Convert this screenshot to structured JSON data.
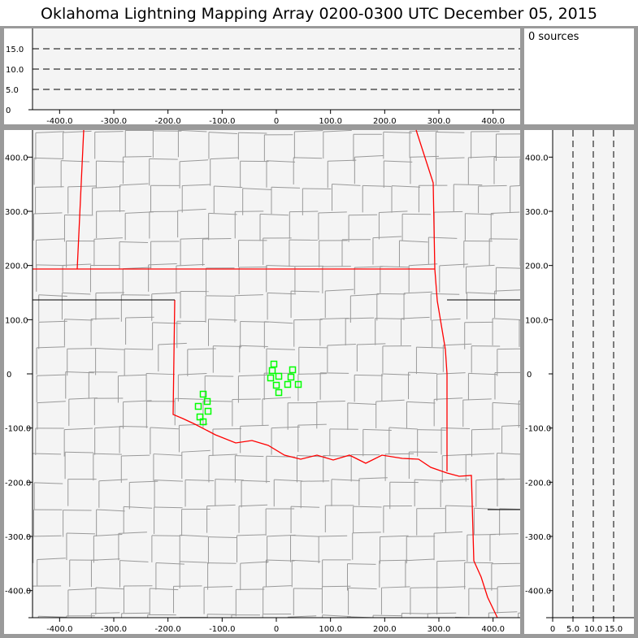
{
  "title": "Oklahoma Lightning Mapping Array   0200-0300 UTC  December 05, 2015",
  "sources_label": "0 sources",
  "colors": {
    "plot_bg": "#f4f4f4",
    "state_border": "#ff0000",
    "county_border": "#999999",
    "source_marker": "#00ff00"
  },
  "chart_data": [
    {
      "type": "line",
      "panel": "east-west vs altitude",
      "xlim": [
        -450,
        450
      ],
      "ylim": [
        0,
        20
      ],
      "x_ticks": [
        "-400.0",
        "-300.0",
        "-200.0",
        "-100.0",
        "0",
        "100.0",
        "200.0",
        "300.0",
        "400.0"
      ],
      "y_ticks": [
        "0",
        "5.0",
        "10.0",
        "15.0"
      ],
      "reference_lines_y": [
        5,
        10,
        15
      ]
    },
    {
      "type": "scatter",
      "panel": "plan view map",
      "xlim": [
        -450,
        450
      ],
      "ylim": [
        -450,
        450
      ],
      "x_ticks": [
        "-400.0",
        "-300.0",
        "-200.0",
        "-100.0",
        "0",
        "100.0",
        "200.0",
        "300.0",
        "400.0"
      ],
      "y_ticks": [
        "400.0",
        "300.0",
        "200.0",
        "100.0",
        "0",
        "-100.0",
        "-200.0",
        "-300.0",
        "-400.0"
      ],
      "marker": "open-square",
      "points": [
        [
          -4.5,
          18
        ],
        [
          -7.5,
          6
        ],
        [
          4.5,
          -4.5
        ],
        [
          -10.5,
          -7.5
        ],
        [
          30,
          7.5
        ],
        [
          27,
          -6
        ],
        [
          0,
          -21
        ],
        [
          21,
          -19.5
        ],
        [
          40.5,
          -19.5
        ],
        [
          4.5,
          -34.5
        ],
        [
          -135,
          -37.5
        ],
        [
          -127.5,
          -51
        ],
        [
          -144,
          -60
        ],
        [
          -126,
          -69
        ],
        [
          -141,
          -79.5
        ],
        [
          -135,
          -88.5
        ]
      ]
    },
    {
      "type": "line",
      "panel": "altitude vs north-south",
      "xlim": [
        0,
        20
      ],
      "ylim": [
        -450,
        450
      ],
      "x_ticks": [
        "0",
        "5.0",
        "10.0",
        "15.0"
      ],
      "y_ticks": [
        "400.0",
        "300.0",
        "200.0",
        "100.0",
        "0",
        "-100.0",
        "-200.0",
        "-300.0",
        "-400.0"
      ],
      "reference_lines_x": [
        5,
        10,
        15
      ]
    }
  ]
}
